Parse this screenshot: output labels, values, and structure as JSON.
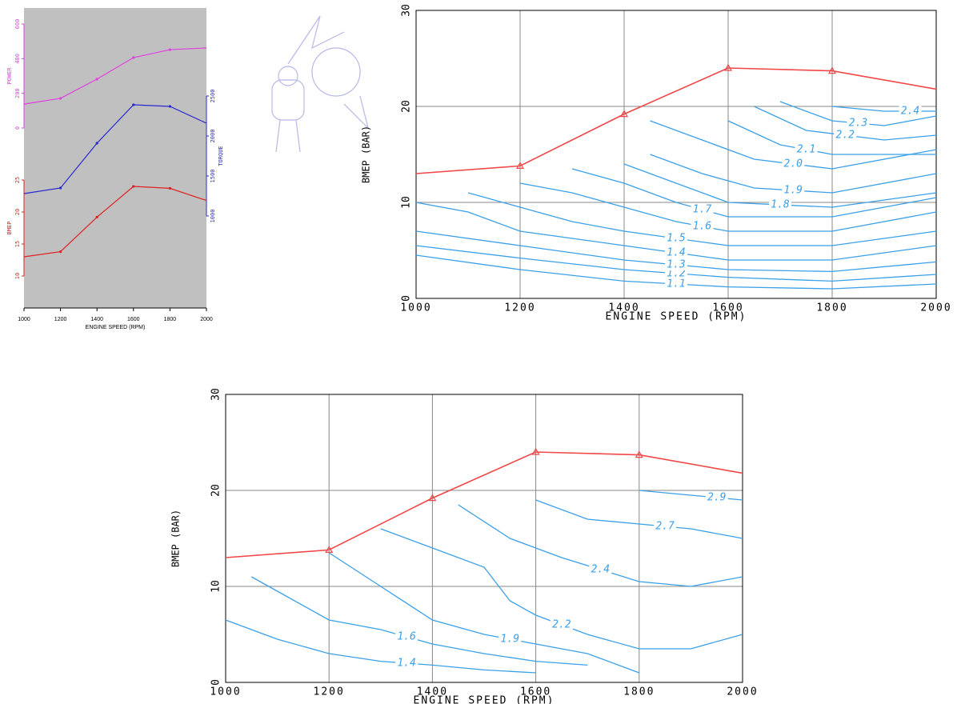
{
  "chart_data": [
    {
      "type": "multiaxis",
      "xlabel": "ENGINE SPEED (RPM)",
      "x": [
        1000,
        1200,
        1400,
        1600,
        1800,
        2000
      ],
      "xlim": [
        1000,
        2000
      ],
      "xticks": [
        1000,
        1200,
        1400,
        1600,
        1800,
        2000
      ],
      "ylabel": "POWER",
      "ylim": [
        0,
        600
      ],
      "yticks": [
        0,
        200,
        400,
        600
      ],
      "y2label": "TORQUE",
      "y2lim": [
        1000,
        2500
      ],
      "y2ticks": [
        1000,
        1500,
        2000,
        2500
      ],
      "y3label": "BMEP",
      "y3lim": [
        10,
        25
      ],
      "y3ticks": [
        10,
        15,
        20,
        25
      ],
      "background": "#c0c0c0",
      "series": [
        {
          "axis": "y",
          "color": "#e040e0",
          "values": [
            138,
            171,
            282,
            406,
            452,
            462
          ]
        },
        {
          "axis": "y2",
          "color": "#2828d0",
          "values": [
            1280,
            1350,
            1910,
            2390,
            2370,
            2160
          ]
        },
        {
          "axis": "y3",
          "color": "#e02020",
          "values": [
            13,
            13.8,
            19.2,
            24,
            23.7,
            21.8
          ]
        }
      ]
    },
    {
      "type": "contour",
      "xlabel": "ENGINE SPEED (RPM)",
      "ylabel": "BMEP (BAR)",
      "xlim": [
        1000,
        2000
      ],
      "xticks": [
        1000,
        1200,
        1400,
        1600,
        1800,
        2000
      ],
      "ylim": [
        0,
        30
      ],
      "yticks": [
        0,
        10,
        20,
        30
      ],
      "grid": true,
      "line": {
        "color": "#f04848",
        "x": [
          1000,
          1200,
          1400,
          1600,
          1800,
          2000
        ],
        "values": [
          13,
          13.8,
          19.2,
          24,
          23.7,
          21.8
        ]
      },
      "contour_color": "#3aa0e8",
      "contours": [
        {
          "level": 1.1,
          "x": [
            1000,
            1200,
            1400,
            1600,
            1800,
            2000
          ],
          "y": [
            4.5,
            3,
            1.8,
            1.2,
            1,
            1.5
          ]
        },
        {
          "level": 1.2,
          "x": [
            1000,
            1200,
            1400,
            1600,
            1800,
            2000
          ],
          "y": [
            5.5,
            4.2,
            3,
            2.2,
            1.8,
            2.5
          ]
        },
        {
          "level": 1.3,
          "x": [
            1000,
            1200,
            1400,
            1600,
            1800,
            2000
          ],
          "y": [
            7,
            5.5,
            4,
            3,
            2.8,
            3.8
          ]
        },
        {
          "level": 1.4,
          "x": [
            1000,
            1100,
            1200,
            1400,
            1600,
            1800,
            2000
          ],
          "y": [
            10,
            9,
            7,
            5.5,
            4,
            4,
            5.5
          ]
        },
        {
          "level": 1.5,
          "x": [
            1100,
            1200,
            1300,
            1400,
            1600,
            1800,
            2000
          ],
          "y": [
            11,
            9.5,
            8,
            7,
            5.5,
            5.5,
            7
          ]
        },
        {
          "level": 1.6,
          "x": [
            1200,
            1300,
            1400,
            1500,
            1600,
            1800,
            2000
          ],
          "y": [
            12,
            11,
            9.5,
            8,
            7,
            7,
            9
          ]
        },
        {
          "level": 1.7,
          "x": [
            1300,
            1400,
            1500,
            1600,
            1800,
            2000
          ],
          "y": [
            13.5,
            12,
            10,
            8.5,
            8.5,
            10.5
          ]
        },
        {
          "level": 1.8,
          "x": [
            1400,
            1500,
            1600,
            1800,
            2000
          ],
          "y": [
            14,
            12,
            10,
            9.5,
            11
          ]
        },
        {
          "level": 1.9,
          "x": [
            1450,
            1550,
            1650,
            1800,
            2000
          ],
          "y": [
            15,
            13,
            11.5,
            11,
            13
          ]
        },
        {
          "level": 2,
          "label": "2.0",
          "x": [
            1450,
            1550,
            1650,
            1800,
            2000
          ],
          "y": [
            18.5,
            16.5,
            14.5,
            13.5,
            15.5
          ]
        },
        {
          "level": 2.1,
          "x": [
            1600,
            1700,
            1800,
            2000
          ],
          "y": [
            18.5,
            16,
            15,
            15
          ]
        },
        {
          "level": 2.2,
          "x": [
            1650,
            1750,
            1900,
            2000
          ],
          "y": [
            20,
            17.5,
            16.5,
            17
          ]
        },
        {
          "level": 2.3,
          "x": [
            1700,
            1800,
            1900,
            2000
          ],
          "y": [
            20.5,
            18.5,
            18,
            19
          ]
        },
        {
          "level": 2.4,
          "x": [
            1800,
            1900,
            2000
          ],
          "y": [
            20,
            19.5,
            19.5
          ]
        }
      ]
    },
    {
      "type": "contour",
      "xlabel": "ENGINE SPEED (RPM)",
      "ylabel": "BMEP (BAR)",
      "xlim": [
        1000,
        2000
      ],
      "xticks": [
        1000,
        1200,
        1400,
        1600,
        1800,
        2000
      ],
      "ylim": [
        0,
        30
      ],
      "yticks": [
        0,
        10,
        20,
        30
      ],
      "grid": true,
      "line": {
        "color": "#f04848",
        "x": [
          1000,
          1200,
          1400,
          1600,
          1800,
          2000
        ],
        "values": [
          13,
          13.8,
          19.2,
          24,
          23.7,
          21.8
        ]
      },
      "contour_color": "#3aa0e8",
      "contours": [
        {
          "level": 1.4,
          "x": [
            1000,
            1100,
            1200,
            1300,
            1400,
            1500,
            1600
          ],
          "y": [
            6.5,
            4.5,
            3,
            2.2,
            1.8,
            1.3,
            1
          ]
        },
        {
          "level": 1.6,
          "x": [
            1050,
            1100,
            1200,
            1300,
            1400,
            1500,
            1600,
            1700
          ],
          "y": [
            11,
            9.5,
            6.5,
            5.5,
            4,
            3,
            2.2,
            1.8
          ]
        },
        {
          "level": 1.9,
          "x": [
            1200,
            1300,
            1400,
            1500,
            1600,
            1700,
            1800
          ],
          "y": [
            13.5,
            10,
            6.5,
            5,
            4,
            3,
            1
          ]
        },
        {
          "level": 2.2,
          "x": [
            1300,
            1400,
            1500,
            1550,
            1600,
            1700,
            1800,
            1900,
            2000
          ],
          "y": [
            16,
            14,
            12,
            8.5,
            7,
            5,
            3.5,
            3.5,
            5
          ]
        },
        {
          "level": 2.4,
          "x": [
            1450,
            1550,
            1650,
            1800,
            1900,
            2000
          ],
          "y": [
            18.5,
            15,
            13,
            10.5,
            10,
            11
          ]
        },
        {
          "level": 2.7,
          "x": [
            1600,
            1700,
            1800,
            1900,
            2000
          ],
          "y": [
            19,
            17,
            16.5,
            16,
            15
          ]
        },
        {
          "level": 2.9,
          "x": [
            1800,
            1900,
            2000
          ],
          "y": [
            20,
            19.5,
            19
          ]
        }
      ]
    }
  ]
}
